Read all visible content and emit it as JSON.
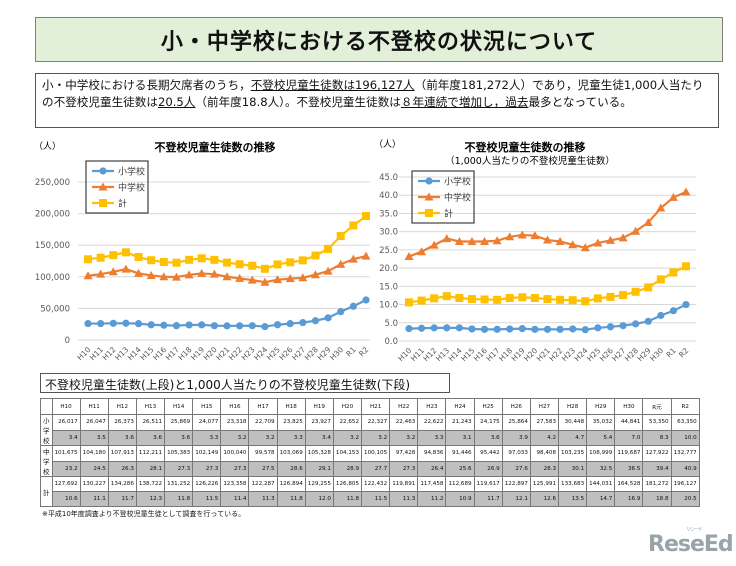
{
  "title": "小・中学校における不登校の状況について",
  "summary": {
    "p1": "小・中学校における長期欠席者のうち，",
    "u1": "不登校児童生徒数は196,127人",
    "p2": "（前年度181,272人）であり，児童生徒1,000人当たりの不登校児童生徒数は",
    "u2": "20.5人",
    "p3": "（前年度18.8人）。不登校児童生徒数は",
    "u3": "８年連続で増加し，過去",
    "p4": "最多となっている。"
  },
  "years": [
    "H10",
    "H11",
    "H12",
    "H13",
    "H14",
    "H15",
    "H16",
    "H17",
    "H18",
    "H19",
    "H20",
    "H21",
    "H22",
    "H23",
    "H24",
    "H25",
    "H26",
    "H27",
    "H28",
    "H29",
    "H30",
    "R元",
    "R2"
  ],
  "chart_data": [
    {
      "type": "line",
      "title": "不登校児童生徒数の推移",
      "ylabel": "（人）",
      "ylim": [
        0,
        250000
      ],
      "yticks": [
        "0",
        "50,000",
        "100,000",
        "150,000",
        "200,000",
        "250,000"
      ],
      "xticks": [
        "H10",
        "H11",
        "H12",
        "H13",
        "H14",
        "H15",
        "H16",
        "H17",
        "H18",
        "H19",
        "H20",
        "H21",
        "H22",
        "H23",
        "H24",
        "H25",
        "H26",
        "H27",
        "H28",
        "H29",
        "H30",
        "R1",
        "R2"
      ],
      "legend": "top-left",
      "grid": true,
      "series": [
        {
          "name": "小学校",
          "color": "#5b9bd5",
          "marker": "circle",
          "values": [
            26017,
            26047,
            26373,
            26511,
            25869,
            24077,
            23318,
            22709,
            23825,
            23927,
            22652,
            22327,
            22463,
            22622,
            21243,
            24175,
            25864,
            27583,
            30448,
            35032,
            44841,
            53350,
            63350
          ]
        },
        {
          "name": "中学校",
          "color": "#ed7d31",
          "marker": "triangle",
          "values": [
            101675,
            104180,
            107913,
            112211,
            105383,
            102149,
            100040,
            99578,
            103069,
            105328,
            104153,
            100105,
            97428,
            94836,
            91446,
            95442,
            97033,
            98408,
            103235,
            108999,
            119687,
            127922,
            132777
          ]
        },
        {
          "name": "計",
          "color": "#ffc000",
          "marker": "square",
          "values": [
            127692,
            130227,
            134286,
            138722,
            131252,
            126226,
            123358,
            122287,
            126894,
            129255,
            126805,
            122432,
            119891,
            117458,
            112689,
            119617,
            122897,
            125991,
            133683,
            144031,
            164528,
            181272,
            196127
          ]
        }
      ]
    },
    {
      "type": "line",
      "title": "不登校児童生徒数の推移",
      "subtitle": "（1,000人当たりの不登校児童生徒数）",
      "ylabel": "（人）",
      "ylim": [
        0,
        45
      ],
      "yticks": [
        "0.0",
        "5.0",
        "10.0",
        "15.0",
        "20.0",
        "25.0",
        "30.0",
        "35.0",
        "40.0",
        "45.0"
      ],
      "xticks": [
        "H10",
        "H11",
        "H12",
        "H13",
        "H14",
        "H15",
        "H16",
        "H17",
        "H18",
        "H19",
        "H20",
        "H21",
        "H22",
        "H23",
        "H24",
        "H25",
        "H26",
        "H27",
        "H28",
        "H29",
        "H30",
        "R1",
        "R2"
      ],
      "legend": "top-left",
      "grid": true,
      "series": [
        {
          "name": "小学校",
          "color": "#5b9bd5",
          "marker": "circle",
          "values": [
            3.4,
            3.5,
            3.6,
            3.6,
            3.6,
            3.3,
            3.2,
            3.2,
            3.3,
            3.4,
            3.2,
            3.2,
            3.2,
            3.3,
            3.1,
            3.6,
            3.9,
            4.2,
            4.7,
            5.4,
            7.0,
            8.3,
            10.0
          ]
        },
        {
          "name": "中学校",
          "color": "#ed7d31",
          "marker": "triangle",
          "values": [
            23.2,
            24.5,
            26.3,
            28.1,
            27.3,
            27.3,
            27.3,
            27.5,
            28.6,
            29.1,
            28.9,
            27.7,
            27.3,
            26.4,
            25.6,
            26.9,
            27.6,
            28.3,
            30.1,
            32.5,
            36.5,
            39.4,
            40.9
          ]
        },
        {
          "name": "計",
          "color": "#ffc000",
          "marker": "square",
          "values": [
            10.6,
            11.1,
            11.7,
            12.3,
            11.8,
            11.5,
            11.4,
            11.3,
            11.8,
            12.0,
            11.8,
            11.5,
            11.3,
            11.2,
            10.9,
            11.7,
            12.1,
            12.6,
            13.5,
            14.7,
            16.9,
            18.8,
            20.5
          ]
        }
      ]
    }
  ],
  "table": {
    "title": "不登校児童生徒数(上段)と1,000人当たりの不登校児童生徒数(下段)",
    "rows": [
      {
        "label": "小学校",
        "counts": [
          "26,017",
          "26,047",
          "26,373",
          "26,511",
          "25,869",
          "24,077",
          "23,318",
          "22,709",
          "23,825",
          "23,927",
          "22,652",
          "22,327",
          "22,463",
          "22,622",
          "21,243",
          "24,175",
          "25,864",
          "27,583",
          "30,448",
          "35,032",
          "44,841",
          "53,350",
          "63,350"
        ],
        "rates": [
          "3.4",
          "3.5",
          "3.6",
          "3.6",
          "3.6",
          "3.3",
          "3.2",
          "3.2",
          "3.3",
          "3.4",
          "3.2",
          "3.2",
          "3.2",
          "3.3",
          "3.1",
          "3.6",
          "3.9",
          "4.2",
          "4.7",
          "5.4",
          "7.0",
          "8.3",
          "10.0"
        ]
      },
      {
        "label": "中学校",
        "counts": [
          "101,675",
          "104,180",
          "107,913",
          "112,211",
          "105,383",
          "102,149",
          "100,040",
          "99,578",
          "103,069",
          "105,328",
          "104,153",
          "100,105",
          "97,428",
          "94,836",
          "91,446",
          "95,442",
          "97,033",
          "98,408",
          "103,235",
          "108,999",
          "119,687",
          "127,922",
          "132,777"
        ],
        "rates": [
          "23.2",
          "24.5",
          "26.3",
          "28.1",
          "27.3",
          "27.3",
          "27.3",
          "27.5",
          "28.6",
          "29.1",
          "28.9",
          "27.7",
          "27.3",
          "26.4",
          "25.6",
          "26.9",
          "27.6",
          "28.3",
          "30.1",
          "32.5",
          "36.5",
          "39.4",
          "40.9"
        ]
      },
      {
        "label": "計",
        "counts": [
          "127,692",
          "130,227",
          "134,286",
          "138,722",
          "131,252",
          "126,226",
          "123,358",
          "122,287",
          "126,894",
          "129,255",
          "126,805",
          "122,432",
          "119,891",
          "117,458",
          "112,689",
          "119,617",
          "122,897",
          "125,991",
          "133,683",
          "144,031",
          "164,528",
          "181,272",
          "196,127"
        ],
        "rates": [
          "10.6",
          "11.1",
          "11.7",
          "12.3",
          "11.8",
          "11.5",
          "11.4",
          "11.3",
          "11.8",
          "12.0",
          "11.8",
          "11.5",
          "11.3",
          "11.2",
          "10.9",
          "11.7",
          "12.1",
          "12.6",
          "13.5",
          "14.7",
          "16.9",
          "18.8",
          "20.5"
        ]
      }
    ]
  },
  "footnote": "※平成10年度調査より不登校児童生徒として調査を行っている。",
  "logo": {
    "text": "ReseEd",
    "sub": "リシード"
  }
}
